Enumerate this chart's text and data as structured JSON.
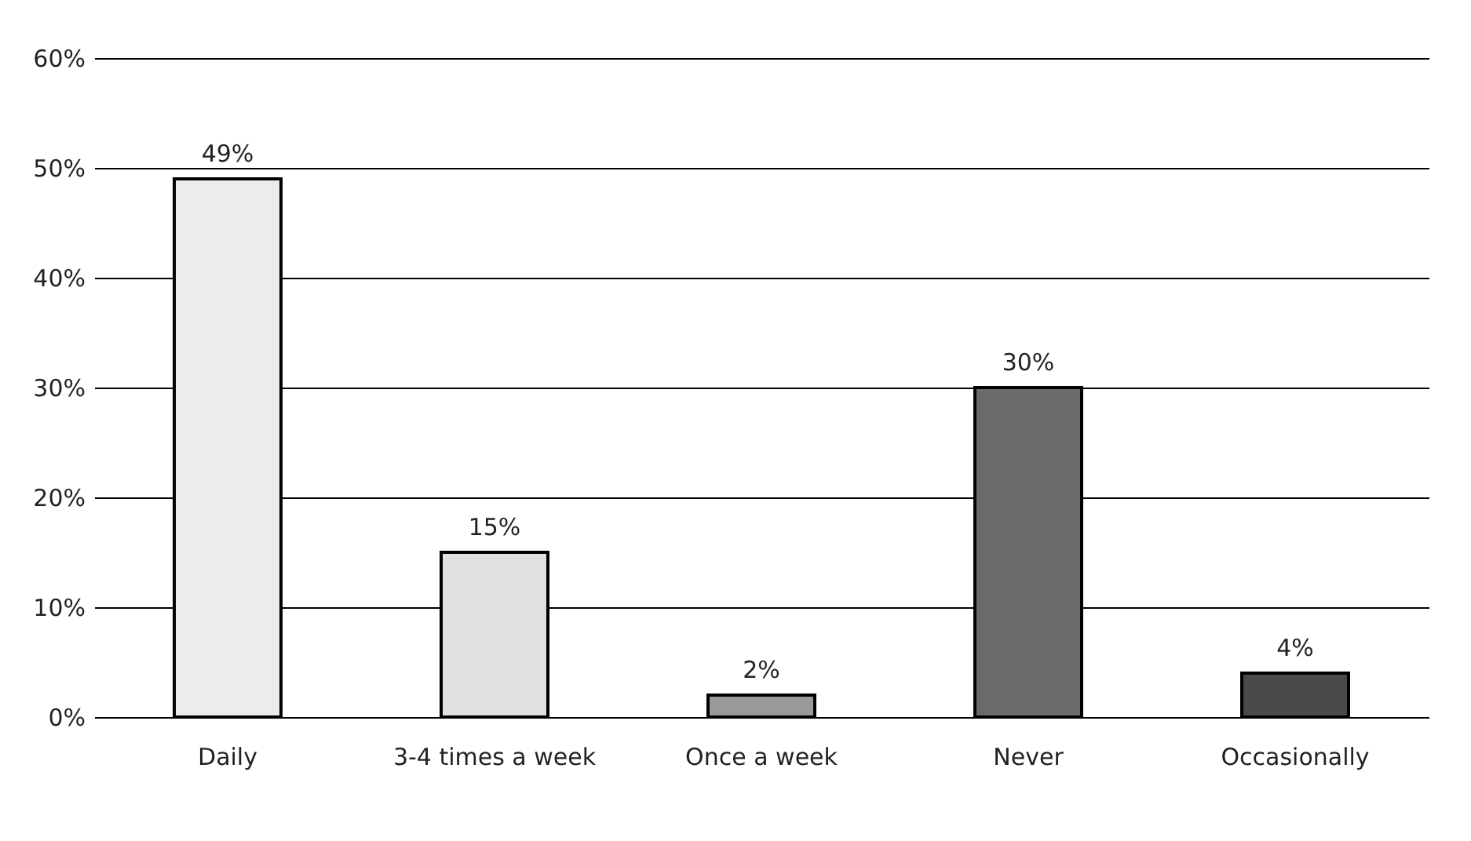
{
  "chart_data": {
    "type": "bar",
    "categories": [
      "Daily",
      "3-4 times a week",
      "Once a week",
      "Never",
      "Occasionally"
    ],
    "values": [
      49,
      15,
      2,
      30,
      4
    ],
    "colors": [
      "#ececec",
      "#e0e0e0",
      "#9a9a9a",
      "#6a6a6a",
      "#4a4a4a"
    ],
    "value_labels": [
      "49%",
      "15%",
      "2%",
      "30%",
      "4%"
    ],
    "ylim": [
      0,
      60
    ],
    "yticks": [
      {
        "value": 0,
        "label": "0%"
      },
      {
        "value": 10,
        "label": "10%"
      },
      {
        "value": 20,
        "label": "20%"
      },
      {
        "value": 30,
        "label": "30%"
      },
      {
        "value": 40,
        "label": "40%"
      },
      {
        "value": 50,
        "label": "50%"
      },
      {
        "value": 60,
        "label": "60%"
      }
    ],
    "grid": "y"
  }
}
